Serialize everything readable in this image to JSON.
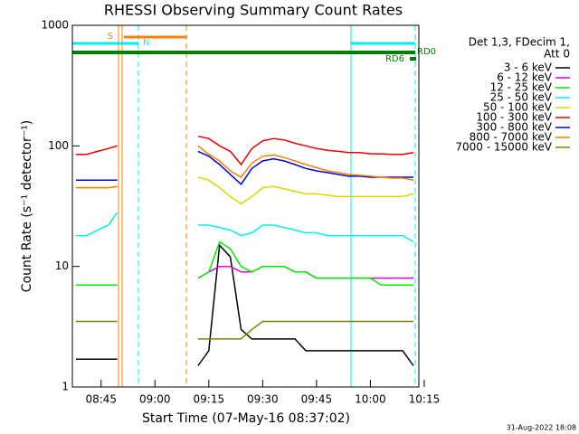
{
  "chart_data": {
    "type": "line",
    "title": "RHESSI Observing Summary Count Rates",
    "x_label": "Start Time (07-May-16 08:37:02)",
    "y_label": "Count Rate (s⁻¹ detector⁻¹)",
    "legend_header": [
      "Det 1,3, FDecim 1,",
      "Att 0"
    ],
    "annotations": [
      "S",
      "N",
      "RD0",
      "RD6"
    ],
    "footer": "31-Aug-2022 18:08",
    "log_y": true,
    "xlim": [
      517,
      613.5
    ],
    "ylim": [
      1,
      1000
    ],
    "yticks": [
      1,
      10,
      100,
      1000
    ],
    "xticks": [
      {
        "value": 525,
        "label": "08:45"
      },
      {
        "value": 540,
        "label": "09:00"
      },
      {
        "value": 555,
        "label": "09:15"
      },
      {
        "value": 570,
        "label": "09:30"
      },
      {
        "value": 585,
        "label": "09:45"
      },
      {
        "value": 600,
        "label": "10:00"
      },
      {
        "value": 615,
        "label": "10:15"
      }
    ],
    "x": [
      518,
      521,
      524,
      527,
      529.5,
      540,
      552,
      555,
      558,
      561,
      564,
      567,
      570,
      573,
      576,
      579,
      582,
      585,
      588,
      591,
      594,
      597,
      600,
      603,
      606,
      609,
      612
    ],
    "series": [
      {
        "name": "3 - 6 keV",
        "color": "#000000",
        "values": [
          1.7,
          1.7,
          1.7,
          1.7,
          1.7,
          null,
          1.5,
          2,
          15,
          12,
          3,
          2.5,
          2.5,
          2.5,
          2.5,
          2.5,
          2,
          2,
          2,
          2,
          2,
          2,
          2,
          2,
          2,
          2,
          1.5
        ]
      },
      {
        "name": "6 - 12 keV",
        "color": "#e000e0",
        "values": [
          7,
          7,
          7,
          7,
          7,
          null,
          8,
          9,
          10,
          10,
          9,
          9,
          10,
          10,
          10,
          9,
          9,
          8,
          8,
          8,
          8,
          8,
          8,
          8,
          8,
          8,
          8
        ]
      },
      {
        "name": "12 - 25 keV",
        "color": "#00ee00",
        "values": [
          7,
          7,
          7,
          7,
          7,
          null,
          8,
          9,
          16,
          14,
          10,
          9,
          10,
          10,
          10,
          9,
          9,
          8,
          8,
          8,
          8,
          8,
          8,
          7,
          7,
          7,
          7
        ]
      },
      {
        "name": "25 - 50 keV",
        "color": "#00eeee",
        "values": [
          18,
          18,
          20,
          22,
          28,
          null,
          22,
          22,
          21,
          20,
          18,
          19,
          22,
          22,
          21,
          20,
          19,
          19,
          18,
          18,
          18,
          18,
          18,
          18,
          18,
          18,
          16
        ]
      },
      {
        "name": "50 - 100 keV",
        "color": "#d8d800",
        "values": [
          45,
          45,
          45,
          45,
          46,
          null,
          55,
          52,
          45,
          38,
          33,
          38,
          45,
          46,
          44,
          42,
          40,
          40,
          39,
          38,
          38,
          38,
          38,
          38,
          38,
          38,
          40
        ]
      },
      {
        "name": "100 - 300 keV",
        "color": "#ee0000",
        "values": [
          85,
          85,
          90,
          95,
          100,
          null,
          120,
          115,
          100,
          90,
          70,
          95,
          110,
          115,
          112,
          105,
          100,
          95,
          92,
          90,
          88,
          88,
          86,
          86,
          85,
          85,
          88
        ]
      },
      {
        "name": "300 - 800 keV",
        "color": "#0000e0",
        "values": [
          52,
          52,
          52,
          52,
          52,
          null,
          90,
          82,
          70,
          58,
          48,
          65,
          75,
          78,
          75,
          70,
          65,
          62,
          60,
          58,
          56,
          56,
          55,
          55,
          55,
          55,
          55
        ]
      },
      {
        "name": "800 - 7000 keV",
        "color": "#ff8000",
        "values": [
          45,
          45,
          45,
          45,
          46,
          null,
          100,
          85,
          75,
          62,
          55,
          72,
          82,
          84,
          80,
          75,
          70,
          66,
          62,
          60,
          58,
          57,
          56,
          55,
          54,
          54,
          52
        ]
      },
      {
        "name": "7000 - 15000 keV",
        "color": "#808000",
        "values": [
          3.5,
          3.5,
          3.5,
          3.5,
          3.5,
          null,
          2.5,
          2.5,
          2.5,
          2.5,
          2.5,
          3,
          3.5,
          3.5,
          3.5,
          3.5,
          3.5,
          3.5,
          3.5,
          3.5,
          3.5,
          3.5,
          3.5,
          3.5,
          3.5,
          3.5,
          3.5
        ]
      }
    ]
  }
}
